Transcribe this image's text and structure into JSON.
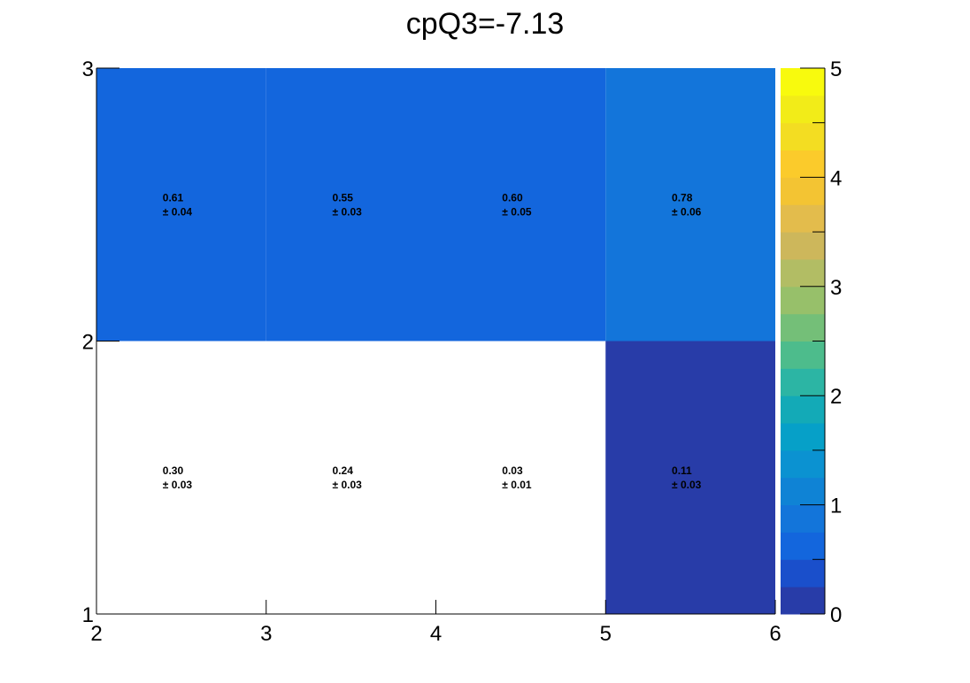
{
  "chart_data": {
    "type": "heatmap",
    "title": "cpQ3=-7.13",
    "xlabel": "",
    "ylabel": "",
    "x_edges": [
      2,
      3,
      4,
      5,
      6
    ],
    "y_edges": [
      1,
      2,
      3
    ],
    "xlim": [
      2,
      6
    ],
    "ylim": [
      1,
      3
    ],
    "x_ticks": [
      "2",
      "3",
      "4",
      "5",
      "6"
    ],
    "y_ticks": [
      "1",
      "2",
      "3"
    ],
    "zlim": [
      0,
      5
    ],
    "z_ticks": [
      "0",
      "1",
      "2",
      "3",
      "4",
      "5"
    ],
    "grid": false,
    "colorbar": "right",
    "cells": [
      {
        "x": 2,
        "y": 1,
        "value": 0.3,
        "error": 0.03,
        "value_label": "0.30",
        "error_label": "± 0.03"
      },
      {
        "x": 3,
        "y": 1,
        "value": 0.24,
        "error": 0.03,
        "value_label": "0.24",
        "error_label": "± 0.03"
      },
      {
        "x": 4,
        "y": 1,
        "value": 0.03,
        "error": 0.01,
        "value_label": "0.03",
        "error_label": "± 0.01"
      },
      {
        "x": 5,
        "y": 1,
        "value": 0.11,
        "error": 0.03,
        "value_label": "0.11",
        "error_label": "± 0.03"
      },
      {
        "x": 2,
        "y": 2,
        "value": 0.61,
        "error": 0.04,
        "value_label": "0.61",
        "error_label": "± 0.04"
      },
      {
        "x": 3,
        "y": 2,
        "value": 0.55,
        "error": 0.03,
        "value_label": "0.55",
        "error_label": "± 0.03"
      },
      {
        "x": 4,
        "y": 2,
        "value": 0.6,
        "error": 0.05,
        "value_label": "0.60",
        "error_label": "± 0.05"
      },
      {
        "x": 5,
        "y": 2,
        "value": 0.78,
        "error": 0.06,
        "value_label": "0.78",
        "error_label": "± 0.06"
      }
    ],
    "cell_colors": {
      "0.30": "#ffffff",
      "0.24": "#ffffff",
      "0.03": "#ffffff",
      "0.11": "#283ca8",
      "0.61": "#1366dd",
      "0.55": "#1366dd",
      "0.60": "#1366dd",
      "0.78": "#1375da"
    },
    "palette": [
      "#283ca8",
      "#1a4fcb",
      "#1366dd",
      "#1375da",
      "#0f83d5",
      "#0b92d1",
      "#06a0c8",
      "#13aab7",
      "#2cb5a4",
      "#4dbc8c",
      "#74bf78",
      "#97c06a",
      "#b2bd64",
      "#cdb75b",
      "#e3bc4c",
      "#f3c433",
      "#fbcb2b",
      "#f3dd22",
      "#f2ec18",
      "#f8fa0d"
    ]
  }
}
